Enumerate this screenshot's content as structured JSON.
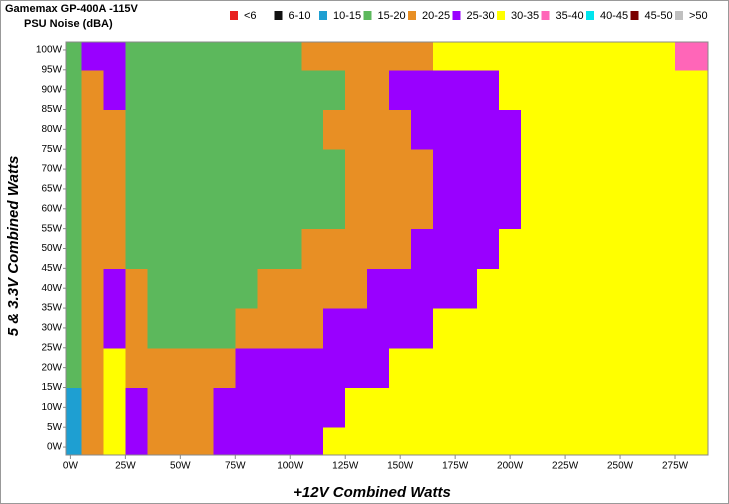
{
  "chart_data": {
    "type": "heatmap",
    "title": "Gamemax GP-400A -115V",
    "subtitle": "PSU Noise (dBA)",
    "x_label": "+12V Combined Watts",
    "y_label": "5 & 3.3V Combined Watts",
    "legend": [
      {
        "name": "<6",
        "color": "#e8201e"
      },
      {
        "name": "6-10",
        "color": "#111111"
      },
      {
        "name": "10-15",
        "color": "#1e9fd2"
      },
      {
        "name": "15-20",
        "color": "#5cb85c"
      },
      {
        "name": "20-25",
        "color": "#e88f24"
      },
      {
        "name": "25-30",
        "color": "#9900ff"
      },
      {
        "name": "30-35",
        "color": "#ffff00"
      },
      {
        "name": "35-40",
        "color": "#ff66b8"
      },
      {
        "name": "40-45",
        "color": "#00e5ee"
      },
      {
        "name": "45-50",
        "color": "#7a0000"
      },
      {
        "name": ">50",
        "color": "#c0c0c0"
      }
    ],
    "levels": [
      6,
      10,
      15,
      20,
      25,
      30,
      35,
      40,
      45,
      50
    ],
    "x": [
      0,
      10,
      20,
      30,
      40,
      50,
      60,
      70,
      80,
      90,
      100,
      110,
      120,
      130,
      140,
      150,
      160,
      170,
      180,
      190,
      200,
      210,
      220,
      230,
      240,
      250,
      260,
      270,
      280
    ],
    "y": [
      0,
      10,
      20,
      30,
      40,
      50,
      60,
      70,
      80,
      90,
      100
    ],
    "z": [
      [
        12,
        22,
        32,
        27,
        22,
        22,
        22,
        27,
        27,
        27,
        27,
        27,
        32,
        32,
        32,
        32,
        32,
        32,
        32,
        32,
        32,
        32,
        32,
        32,
        32,
        32,
        32,
        32,
        32
      ],
      [
        12,
        22,
        32,
        27,
        22,
        22,
        22,
        27,
        27,
        27,
        27,
        27,
        27,
        32,
        32,
        32,
        32,
        32,
        32,
        32,
        32,
        32,
        32,
        32,
        32,
        32,
        32,
        32,
        32
      ],
      [
        18,
        22,
        32,
        22,
        22,
        22,
        22,
        22,
        27,
        27,
        27,
        27,
        27,
        27,
        27,
        32,
        32,
        32,
        32,
        32,
        32,
        32,
        32,
        32,
        32,
        32,
        32,
        32,
        32
      ],
      [
        18,
        22,
        27,
        22,
        18,
        18,
        18,
        18,
        22,
        22,
        22,
        22,
        27,
        27,
        27,
        27,
        27,
        32,
        32,
        32,
        32,
        32,
        32,
        32,
        32,
        32,
        32,
        32,
        32
      ],
      [
        18,
        22,
        27,
        22,
        18,
        18,
        18,
        18,
        18,
        22,
        22,
        22,
        22,
        22,
        27,
        27,
        27,
        27,
        27,
        32,
        32,
        32,
        32,
        32,
        32,
        32,
        32,
        32,
        32
      ],
      [
        18,
        22,
        22,
        18,
        18,
        18,
        18,
        18,
        18,
        18,
        18,
        22,
        22,
        22,
        22,
        22,
        27,
        27,
        27,
        27,
        32,
        32,
        32,
        32,
        32,
        32,
        32,
        32,
        32
      ],
      [
        18,
        22,
        22,
        18,
        18,
        18,
        18,
        18,
        18,
        18,
        18,
        18,
        18,
        22,
        22,
        22,
        22,
        27,
        27,
        27,
        27,
        32,
        32,
        32,
        32,
        32,
        32,
        32,
        32
      ],
      [
        18,
        22,
        22,
        18,
        18,
        18,
        18,
        18,
        18,
        18,
        18,
        18,
        18,
        22,
        22,
        22,
        22,
        27,
        27,
        27,
        27,
        32,
        32,
        32,
        32,
        32,
        32,
        32,
        32
      ],
      [
        18,
        22,
        22,
        18,
        18,
        18,
        18,
        18,
        18,
        18,
        18,
        18,
        22,
        22,
        22,
        22,
        27,
        27,
        27,
        27,
        27,
        32,
        32,
        32,
        32,
        32,
        32,
        32,
        32
      ],
      [
        18,
        22,
        27,
        18,
        18,
        18,
        18,
        18,
        18,
        18,
        18,
        18,
        18,
        22,
        22,
        27,
        27,
        27,
        27,
        27,
        32,
        32,
        32,
        32,
        32,
        32,
        32,
        32,
        32
      ],
      [
        18,
        27,
        27,
        18,
        18,
        18,
        18,
        18,
        18,
        18,
        18,
        22,
        22,
        22,
        22,
        22,
        22,
        32,
        32,
        32,
        32,
        32,
        32,
        32,
        32,
        32,
        32,
        32,
        37
      ]
    ],
    "xlim": [
      -2,
      290
    ],
    "ylim": [
      -2,
      102
    ],
    "xticks": [
      {
        "value": 0,
        "label": "0W"
      },
      {
        "value": 25,
        "label": "25W"
      },
      {
        "value": 50,
        "label": "50W"
      },
      {
        "value": 75,
        "label": "75W"
      },
      {
        "value": 100,
        "label": "100W"
      },
      {
        "value": 125,
        "label": "125W"
      },
      {
        "value": 150,
        "label": "150W"
      },
      {
        "value": 175,
        "label": "175W"
      },
      {
        "value": 200,
        "label": "200W"
      },
      {
        "value": 225,
        "label": "225W"
      },
      {
        "value": 250,
        "label": "250W"
      },
      {
        "value": 275,
        "label": "275W"
      }
    ],
    "yticks": [
      {
        "value": 0,
        "label": "0W"
      },
      {
        "value": 5,
        "label": "5W"
      },
      {
        "value": 10,
        "label": "10W"
      },
      {
        "value": 15,
        "label": "15W"
      },
      {
        "value": 20,
        "label": "20W"
      },
      {
        "value": 25,
        "label": "25W"
      },
      {
        "value": 30,
        "label": "30W"
      },
      {
        "value": 35,
        "label": "35W"
      },
      {
        "value": 40,
        "label": "40W"
      },
      {
        "value": 45,
        "label": "45W"
      },
      {
        "value": 50,
        "label": "50W"
      },
      {
        "value": 55,
        "label": "55W"
      },
      {
        "value": 60,
        "label": "60W"
      },
      {
        "value": 65,
        "label": "65W"
      },
      {
        "value": 70,
        "label": "70W"
      },
      {
        "value": 75,
        "label": "75W"
      },
      {
        "value": 80,
        "label": "80W"
      },
      {
        "value": 85,
        "label": "85W"
      },
      {
        "value": 90,
        "label": "90W"
      },
      {
        "value": 95,
        "label": "95W"
      },
      {
        "value": 100,
        "label": "100W"
      }
    ]
  }
}
